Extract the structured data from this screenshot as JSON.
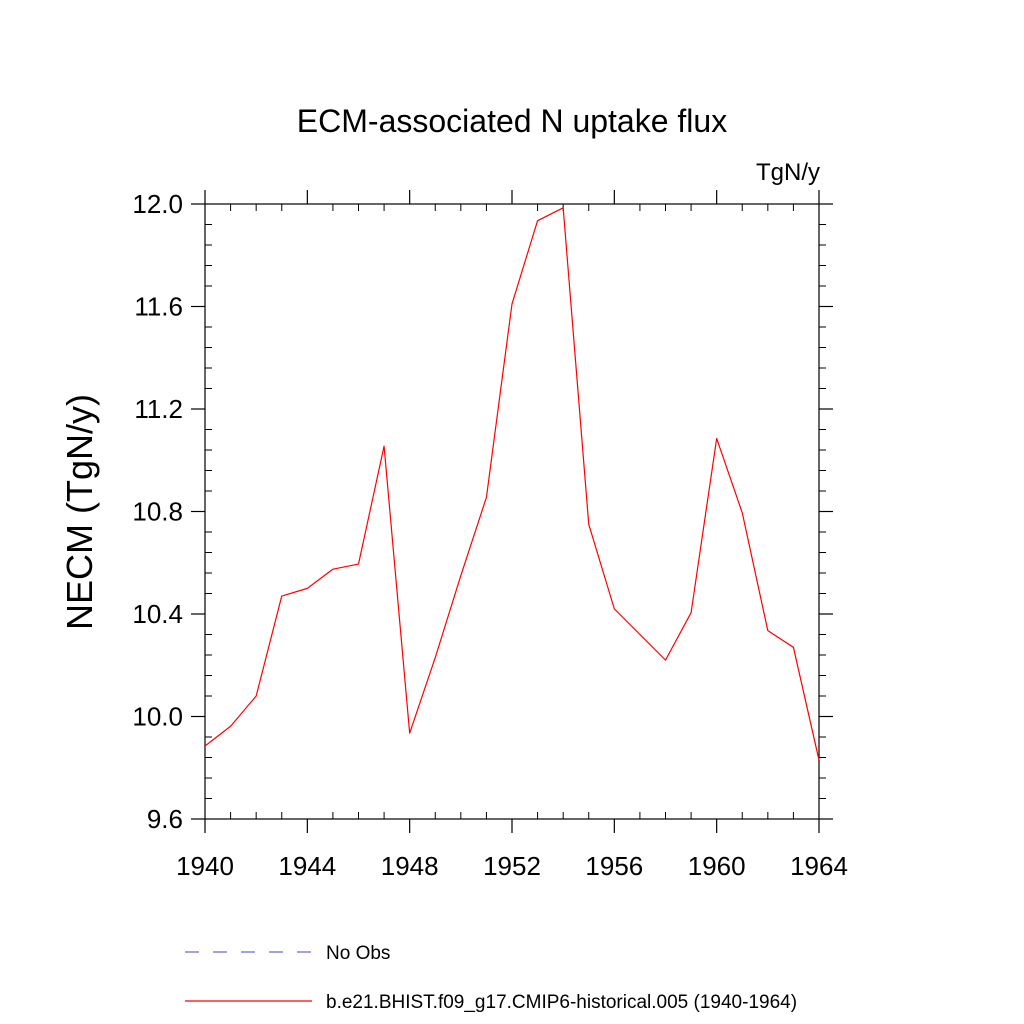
{
  "chart_data": {
    "type": "line",
    "title": "ECM-associated N uptake flux",
    "units_label": "TgN/y",
    "xlabel": "",
    "ylabel": "NECM  (TgN/y)",
    "xlim": [
      1940,
      1964
    ],
    "ylim": [
      9.6,
      12.0
    ],
    "x_ticks": [
      1940,
      1944,
      1948,
      1952,
      1956,
      1960,
      1964
    ],
    "x_tick_labels": [
      "1940",
      "1944",
      "1948",
      "1952",
      "1956",
      "1960",
      "1964"
    ],
    "y_ticks": [
      9.6,
      10.0,
      10.4,
      10.8,
      11.2,
      11.6,
      12.0
    ],
    "y_tick_labels": [
      "9.6",
      "10.0",
      "10.4",
      "10.8",
      "11.2",
      "11.6",
      "12.0"
    ],
    "x": [
      1940,
      1941,
      1942,
      1943,
      1944,
      1945,
      1946,
      1947,
      1948,
      1949,
      1950,
      1951,
      1952,
      1953,
      1954,
      1955,
      1956,
      1957,
      1958,
      1959,
      1960,
      1961,
      1962,
      1963,
      1964
    ],
    "series": [
      {
        "name": "b.e21.BHIST.f09_g17.CMIP6-historical.005 (1940-1964)",
        "color": "#ff0000",
        "dash": "solid",
        "values": [
          9.885,
          9.962,
          10.08,
          10.47,
          10.5,
          10.575,
          10.595,
          11.055,
          9.935,
          10.23,
          10.55,
          10.855,
          11.61,
          11.935,
          11.985,
          10.75,
          10.42,
          10.32,
          10.22,
          10.405,
          11.085,
          10.795,
          10.335,
          10.27,
          9.83
        ]
      }
    ],
    "legend": {
      "placement": "bottom",
      "entries": [
        {
          "label": "No Obs",
          "color": "#6a6ad0",
          "dash": "dashed"
        },
        {
          "label": "b.e21.BHIST.f09_g17.CMIP6-historical.005 (1940-1964)",
          "color": "#ff0000",
          "dash": "solid"
        }
      ]
    }
  }
}
